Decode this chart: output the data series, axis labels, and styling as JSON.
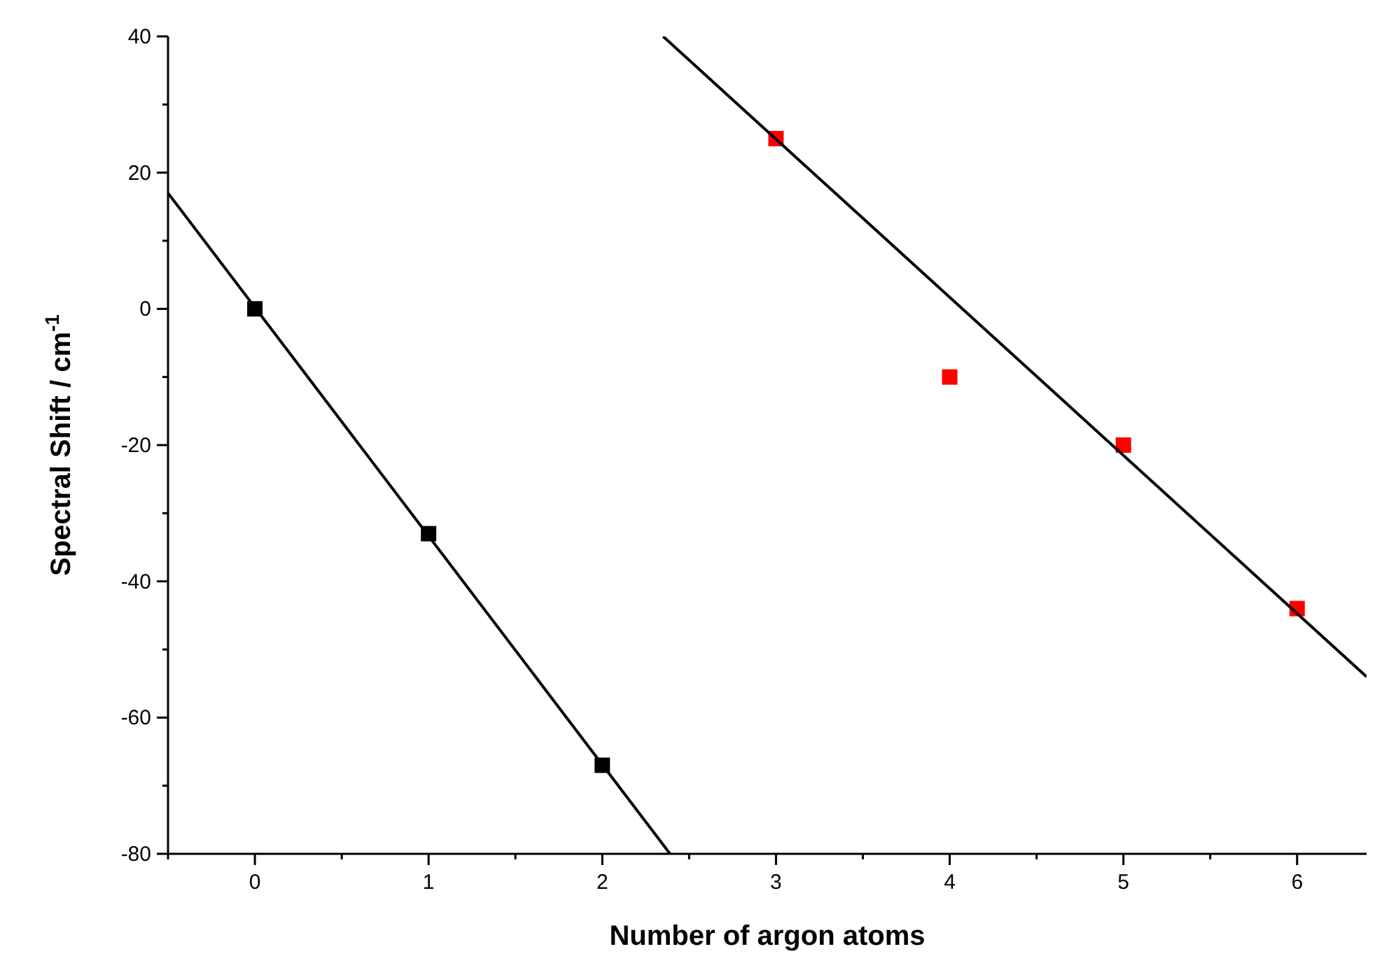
{
  "chart_data": {
    "type": "scatter",
    "xlabel": "Number of argon atoms",
    "ylabel": "Spectral Shift  / cm$^{-1}$",
    "xlim": [
      -0.5,
      6.4
    ],
    "ylim": [
      -80,
      40
    ],
    "xticks": [
      {
        "value": -0.5,
        "label": null
      },
      0,
      {
        "value": 0.5,
        "label": null
      },
      1,
      {
        "value": 1.5,
        "label": null
      },
      2,
      {
        "value": 2.5,
        "label": null
      },
      3,
      {
        "value": 3.5,
        "label": null
      },
      4,
      {
        "value": 4.5,
        "label": null
      },
      5,
      {
        "value": 5.5,
        "label": null
      },
      6
    ],
    "yticks": [
      -80,
      {
        "value": -70,
        "label": null
      },
      -60,
      {
        "value": -50,
        "label": null
      },
      -40,
      {
        "value": -30,
        "label": null
      },
      -20,
      {
        "value": -10,
        "label": null
      },
      0,
      {
        "value": 10,
        "label": null
      },
      20,
      {
        "value": 30,
        "label": null
      },
      40
    ],
    "grid": false,
    "marker": "square",
    "series": [
      {
        "color": "#000000",
        "x": [
          0,
          1,
          2
        ],
        "values": [
          0,
          -33,
          -67
        ]
      },
      {
        "color": "#ff0000",
        "x": [
          3,
          4,
          5,
          6
        ],
        "values": [
          25,
          -10,
          -20,
          -44
        ]
      },
      {
        "type": "line",
        "color": "#000000",
        "marker": "none",
        "line_style": "solid",
        "x": [
          -0.5,
          2.39
        ],
        "values": [
          17,
          -80
        ]
      },
      {
        "type": "line",
        "color": "#000000",
        "marker": "none",
        "line_style": "solid",
        "x": [
          2.35,
          6.4
        ],
        "values": [
          40,
          -54
        ]
      }
    ]
  }
}
